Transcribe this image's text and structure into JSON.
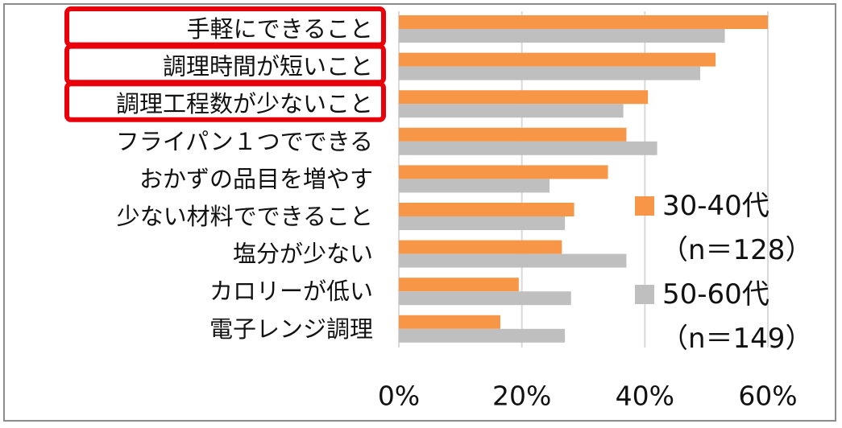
{
  "chart_data": {
    "type": "bar",
    "orientation": "horizontal",
    "categories": [
      "手軽にできること",
      "調理時間が短いこと",
      "調理工程数が少ないこと",
      "フライパン１つでできる",
      "おかずの品目を増やす",
      "少ない材料でできること",
      "塩分が少ない",
      "カロリーが低い",
      "電子レンジ調理"
    ],
    "series": [
      {
        "name": "30-40代",
        "sample": "（n＝128）",
        "color": "#f79646",
        "values": [
          60,
          51.5,
          40.5,
          37,
          34,
          28.5,
          26.5,
          19.5,
          16.5
        ]
      },
      {
        "name": "50-60代",
        "sample": "（n＝149）",
        "color": "#bfbfbf",
        "values": [
          53,
          49,
          36.5,
          42,
          24.5,
          27,
          37,
          28,
          27
        ]
      }
    ],
    "xlim": [
      0,
      60
    ],
    "xticks": [
      "0%",
      "20%",
      "40%",
      "60%"
    ],
    "xtick_values": [
      0,
      20,
      40,
      60
    ],
    "highlighted_categories": [
      0,
      1,
      2
    ],
    "highlight_color": "#e8000b",
    "grid": true,
    "legend_position": "right"
  }
}
